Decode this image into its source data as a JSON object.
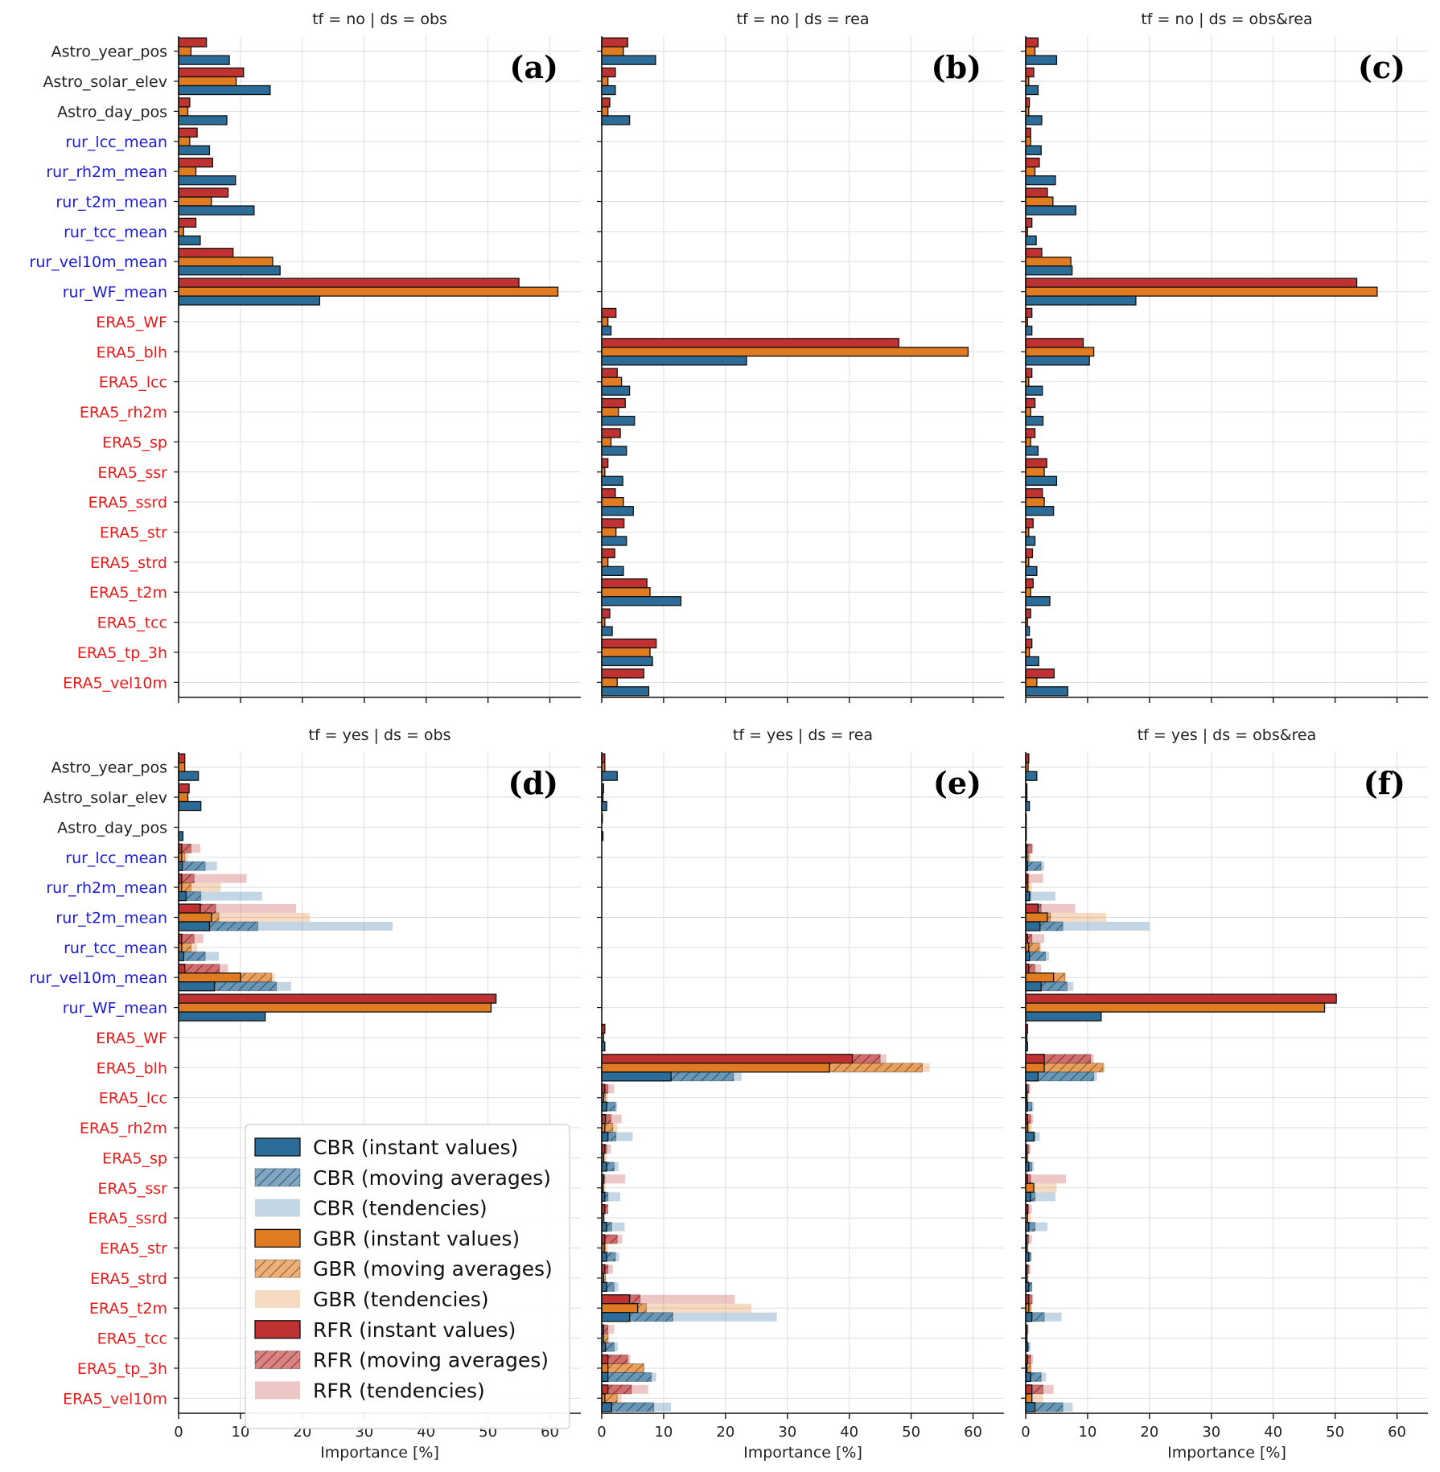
{
  "colors": {
    "cbr": "#2b6c99",
    "gbr": "#e07b22",
    "rfr": "#c03232",
    "astro_label": "#222222",
    "rur_label": "#1b1bd6",
    "era5_label": "#e81a1a",
    "grid": "#dddddd"
  },
  "chart_data": {
    "type": "bar",
    "orientation": "horizontal",
    "xlabel": "Importance [%]",
    "xlim": [
      0,
      65
    ],
    "xticks": [
      0,
      10,
      20,
      30,
      40,
      50,
      60
    ],
    "features": [
      "Astro_year_pos",
      "Astro_solar_elev",
      "Astro_day_pos",
      "rur_lcc_mean",
      "rur_rh2m_mean",
      "rur_t2m_mean",
      "rur_tcc_mean",
      "rur_vel10m_mean",
      "rur_WF_mean",
      "ERA5_WF",
      "ERA5_blh",
      "ERA5_lcc",
      "ERA5_rh2m",
      "ERA5_sp",
      "ERA5_ssr",
      "ERA5_ssrd",
      "ERA5_str",
      "ERA5_strd",
      "ERA5_t2m",
      "ERA5_tcc",
      "ERA5_tp_3h",
      "ERA5_vel10m"
    ],
    "feature_groups": [
      "astro",
      "astro",
      "astro",
      "rur",
      "rur",
      "rur",
      "rur",
      "rur",
      "rur",
      "era5",
      "era5",
      "era5",
      "era5",
      "era5",
      "era5",
      "era5",
      "era5",
      "era5",
      "era5",
      "era5",
      "era5",
      "era5"
    ],
    "series_order": [
      "RFR",
      "GBR",
      "CBR"
    ],
    "legend": {
      "placement": "lower-left of panel (d)",
      "entries": [
        "CBR (instant values)",
        "CBR (moving averages)",
        "CBR (tendencies)",
        "GBR (instant values)",
        "GBR (moving averages)",
        "GBR (tendencies)",
        "RFR (instant values)",
        "RFR (moving averages)",
        "RFR (tendencies)"
      ]
    },
    "panels": [
      {
        "label": "(a)",
        "title": "tf = no | ds = obs",
        "RFR": {
          "instant": [
            4.5,
            10.5,
            1.8,
            3.0,
            5.5,
            8.0,
            2.8,
            8.8,
            55.0,
            0,
            0,
            0,
            0,
            0,
            0,
            0,
            0,
            0,
            0,
            0,
            0,
            0
          ]
        },
        "GBR": {
          "instant": [
            2.0,
            9.3,
            1.5,
            1.8,
            2.8,
            5.3,
            0.8,
            15.2,
            61.3,
            0,
            0,
            0,
            0,
            0,
            0,
            0,
            0,
            0,
            0,
            0,
            0,
            0
          ]
        },
        "CBR": {
          "instant": [
            8.2,
            14.8,
            7.8,
            5.0,
            9.2,
            12.2,
            3.5,
            16.4,
            22.8,
            0,
            0,
            0,
            0,
            0,
            0,
            0,
            0,
            0,
            0,
            0,
            0,
            0
          ]
        }
      },
      {
        "label": "(b)",
        "title": "tf = no | ds = rea",
        "RFR": {
          "instant": [
            4.2,
            2.2,
            1.3,
            0,
            0,
            0,
            0,
            0,
            0,
            2.3,
            48.0,
            2.5,
            3.8,
            3.0,
            1.0,
            2.2,
            3.6,
            2.1,
            7.3,
            1.3,
            8.8,
            6.8
          ]
        },
        "GBR": {
          "instant": [
            3.5,
            1.0,
            1.0,
            0,
            0,
            0,
            0,
            0,
            0,
            1.0,
            59.2,
            3.2,
            2.7,
            1.5,
            0.5,
            3.5,
            2.3,
            1.0,
            7.8,
            0.5,
            7.8,
            2.5
          ]
        },
        "CBR": {
          "instant": [
            8.7,
            2.2,
            4.5,
            0,
            0,
            0,
            0,
            0,
            0,
            1.5,
            23.4,
            4.5,
            5.3,
            4.0,
            3.4,
            5.1,
            4.0,
            3.5,
            12.8,
            1.7,
            8.2,
            7.6
          ]
        }
      },
      {
        "label": "(c)",
        "title": "tf = no | ds = obs&rea",
        "RFR": {
          "instant": [
            2.0,
            1.3,
            0.6,
            0.8,
            2.2,
            3.5,
            1.0,
            2.6,
            53.5,
            1.0,
            9.3,
            1.0,
            1.5,
            1.5,
            3.4,
            2.7,
            1.2,
            1.1,
            1.2,
            0.8,
            1.0,
            4.6
          ]
        },
        "GBR": {
          "instant": [
            1.5,
            0.5,
            0.5,
            0.8,
            1.5,
            4.4,
            0.3,
            7.3,
            56.8,
            0.3,
            11.0,
            0.5,
            0.8,
            0.8,
            3.0,
            3.0,
            0.5,
            0.5,
            0.8,
            0.3,
            0.6,
            1.8
          ]
        },
        "CBR": {
          "instant": [
            5.0,
            2.0,
            2.6,
            2.5,
            4.8,
            8.1,
            1.7,
            7.5,
            17.8,
            1.0,
            10.3,
            2.7,
            2.8,
            2.0,
            5.0,
            4.5,
            1.5,
            1.8,
            3.9,
            0.6,
            2.1,
            6.8
          ]
        }
      },
      {
        "label": "(d)",
        "title": "tf = yes | ds = obs",
        "RFR": {
          "instant": [
            1.0,
            1.7,
            0,
            0.5,
            0.5,
            3.5,
            0.5,
            1.0,
            51.3,
            0,
            0,
            0,
            0,
            0,
            0,
            0,
            0,
            0,
            0,
            0,
            0,
            0
          ],
          "moving": [
            0,
            0,
            0,
            2.0,
            2.5,
            6.0,
            2.5,
            6.6,
            0,
            0,
            0,
            0,
            0,
            0,
            0,
            0,
            0,
            0,
            0,
            0,
            0,
            0
          ],
          "tendency": [
            0,
            0,
            0,
            3.5,
            11.0,
            19.0,
            4.0,
            8.0,
            0,
            0,
            0,
            0,
            0,
            0,
            0,
            0,
            0,
            0,
            0,
            0,
            0,
            0
          ]
        },
        "GBR": {
          "instant": [
            1.0,
            1.5,
            0,
            0.5,
            0.5,
            5.3,
            0.5,
            10.0,
            50.5,
            0,
            0,
            0,
            0,
            0,
            0,
            0,
            0,
            0,
            0,
            0,
            0,
            0
          ],
          "moving": [
            0,
            0,
            0,
            1.0,
            2.0,
            6.5,
            2.0,
            15.0,
            0,
            0,
            0,
            0,
            0,
            0,
            0,
            0,
            0,
            0,
            0,
            0,
            0,
            0
          ],
          "tendency": [
            0,
            0,
            0,
            1.5,
            6.8,
            21.2,
            3.0,
            15.5,
            0,
            0,
            0,
            0,
            0,
            0,
            0,
            0,
            0,
            0,
            0,
            0,
            0,
            0
          ]
        },
        "CBR": {
          "instant": [
            3.2,
            3.6,
            0.7,
            0.6,
            1.2,
            5.0,
            0.8,
            5.8,
            14.0,
            0,
            0,
            0,
            0,
            0,
            0,
            0,
            0,
            0,
            0,
            0,
            0,
            0
          ],
          "moving": [
            0,
            0,
            0,
            4.3,
            3.6,
            12.8,
            4.3,
            15.8,
            0,
            0,
            0,
            0,
            0,
            0,
            0,
            0,
            0,
            0,
            0,
            0,
            0,
            0
          ],
          "tendency": [
            0,
            0,
            0,
            6.2,
            13.5,
            34.6,
            6.5,
            18.2,
            0,
            0,
            0,
            0,
            0,
            0,
            0,
            0,
            0,
            0,
            0,
            0,
            0,
            0
          ]
        }
      },
      {
        "label": "(e)",
        "title": "tf = yes | ds = rea",
        "RFR": {
          "instant": [
            0.5,
            0.3,
            0.1,
            0,
            0,
            0,
            0,
            0,
            0,
            0.5,
            40.5,
            0.5,
            0.6,
            0.5,
            0.3,
            0.5,
            0.5,
            0.5,
            4.5,
            0.3,
            1.0,
            1.0
          ],
          "moving": [
            0,
            0,
            0,
            0,
            0,
            0,
            0,
            0,
            0,
            0,
            45.0,
            1.0,
            1.5,
            0.8,
            0.5,
            1.0,
            2.5,
            1.0,
            6.2,
            1.0,
            4.2,
            4.8
          ],
          "tendency": [
            0,
            0,
            0,
            0,
            0,
            0,
            0,
            0,
            0,
            0,
            46.0,
            2.0,
            3.2,
            1.5,
            3.8,
            0.8,
            3.3,
            1.8,
            21.5,
            2.0,
            4.6,
            7.5
          ]
        },
        "GBR": {
          "instant": [
            0.5,
            0.2,
            0,
            0,
            0,
            0,
            0,
            0,
            0,
            0.3,
            36.8,
            0.3,
            0.5,
            0.3,
            0.2,
            0.3,
            0.4,
            0.3,
            5.8,
            0.3,
            1.0,
            0.5
          ],
          "moving": [
            0,
            0,
            0,
            0,
            0,
            0,
            0,
            0,
            0,
            0,
            51.8,
            0.6,
            1.8,
            0.4,
            0.3,
            0.4,
            0.6,
            0.6,
            7.2,
            1.0,
            6.8,
            2.5
          ],
          "tendency": [
            0,
            0,
            0,
            0,
            0,
            0,
            0,
            0,
            0,
            0,
            53.0,
            1.0,
            2.5,
            0.8,
            0.6,
            0.5,
            1.0,
            0.7,
            24.2,
            1.2,
            6.9,
            3.2
          ]
        },
        "CBR": {
          "instant": [
            2.5,
            0.8,
            0.2,
            0,
            0,
            0,
            0,
            0,
            0,
            0.5,
            11.2,
            0.8,
            1.0,
            0.8,
            0.5,
            0.8,
            0.8,
            0.8,
            4.5,
            0.6,
            1.0,
            1.6
          ],
          "moving": [
            0,
            0,
            0,
            0,
            0,
            0,
            0,
            0,
            0,
            0,
            21.3,
            2.2,
            2.3,
            2.0,
            1.0,
            1.6,
            2.2,
            2.0,
            11.5,
            2.0,
            8.0,
            8.4
          ],
          "tendency": [
            0,
            0,
            0,
            0,
            0,
            0,
            0,
            0,
            0,
            0,
            22.6,
            2.5,
            5.0,
            2.7,
            3.0,
            3.7,
            2.8,
            2.7,
            28.3,
            2.6,
            8.8,
            11.2
          ]
        }
      },
      {
        "label": "(f)",
        "title": "tf = yes | ds = obs&rea",
        "RFR": {
          "instant": [
            0.5,
            0.2,
            0.1,
            0.2,
            0.3,
            2.0,
            0.3,
            0.5,
            50.2,
            0.3,
            3.0,
            0.2,
            0.3,
            0.2,
            0.3,
            0.3,
            0.2,
            0.2,
            0.5,
            0.2,
            0.3,
            1.0
          ],
          "moving": [
            0,
            0,
            0,
            1.0,
            0.5,
            2.5,
            1.0,
            1.5,
            0,
            0,
            10.5,
            0.5,
            0.8,
            0.5,
            0.8,
            0.5,
            0.5,
            0.5,
            1.0,
            0.3,
            0.8,
            2.8
          ],
          "tendency": [
            0,
            0,
            0,
            1.2,
            2.8,
            8.0,
            3.0,
            2.5,
            0,
            0,
            11.0,
            0.8,
            1.2,
            0.8,
            6.5,
            1.0,
            1.0,
            0.8,
            1.2,
            0.5,
            1.2,
            4.5
          ]
        },
        "GBR": {
          "instant": [
            0.4,
            0.2,
            0.1,
            0.2,
            0.3,
            3.5,
            0.5,
            4.5,
            48.3,
            0.2,
            3.0,
            0.2,
            0.3,
            0.2,
            1.3,
            0.3,
            0.2,
            0.2,
            0.5,
            0.2,
            0.2,
            1.0
          ],
          "moving": [
            0,
            0,
            0,
            0.5,
            0.5,
            4.0,
            2.2,
            6.3,
            0,
            0,
            12.5,
            0.3,
            0.5,
            0.3,
            1.0,
            0.3,
            0.3,
            0.3,
            0.8,
            0.2,
            0.8,
            1.0
          ],
          "tendency": [
            0,
            0,
            0,
            0.8,
            1.0,
            13.0,
            2.5,
            6.5,
            0,
            0,
            12.8,
            0.5,
            1.0,
            0.5,
            5.0,
            0.8,
            0.5,
            0.5,
            1.0,
            0.3,
            1.0,
            2.8
          ]
        },
        "CBR": {
          "instant": [
            1.8,
            0.6,
            0.1,
            0.3,
            0.6,
            2.3,
            0.6,
            2.5,
            12.2,
            0.3,
            2.0,
            0.3,
            1.3,
            0.5,
            0.8,
            0.5,
            0.5,
            0.5,
            1.0,
            0.3,
            0.8,
            1.5
          ],
          "moving": [
            0,
            0,
            0,
            2.5,
            0.8,
            6.0,
            3.2,
            6.7,
            0,
            0,
            11.0,
            1.0,
            1.5,
            1.0,
            1.5,
            1.5,
            0.8,
            1.0,
            3.0,
            0.5,
            2.5,
            6.0
          ],
          "tendency": [
            0,
            0,
            0,
            3.0,
            4.8,
            20.0,
            3.8,
            7.7,
            0,
            0,
            11.5,
            1.3,
            2.3,
            1.3,
            4.8,
            3.5,
            1.0,
            1.0,
            5.8,
            0.8,
            3.3,
            7.6
          ]
        }
      }
    ]
  }
}
